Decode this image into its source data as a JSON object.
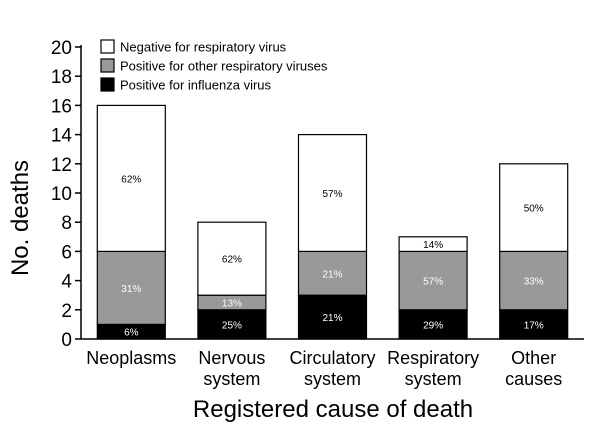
{
  "chart_data": {
    "type": "bar",
    "stacked": true,
    "categories": [
      [
        "Neoplasms"
      ],
      [
        "Nervous",
        "system"
      ],
      [
        "Circulatory",
        "system"
      ],
      [
        "Respiratory",
        "system"
      ],
      [
        "Other",
        "causes"
      ]
    ],
    "series": [
      {
        "name": "Positive for influenza virus",
        "color": "#000000",
        "label_color": "#ffffff",
        "values": [
          1,
          2,
          3,
          2,
          2
        ],
        "labels": [
          "6%",
          "25%",
          "21%",
          "29%",
          "17%"
        ]
      },
      {
        "name": "Positive for other respiratory viruses",
        "color": "#999999",
        "label_color": "#ffffff",
        "values": [
          5,
          1,
          3,
          4,
          4
        ],
        "labels": [
          "31%",
          "13%",
          "21%",
          "57%",
          "33%"
        ]
      },
      {
        "name": "Negative for respiratory virus",
        "color": "#ffffff",
        "label_color": "#000000",
        "values": [
          10,
          5,
          8,
          1,
          6
        ],
        "labels": [
          "62%",
          "62%",
          "57%",
          "14%",
          "50%"
        ]
      }
    ],
    "legend_order": [
      2,
      1,
      0
    ],
    "legend_position": "top-left",
    "xlabel": "Registered cause of death",
    "ylabel": "No. deaths",
    "ylim": [
      0,
      20
    ],
    "yticks": [
      0,
      2,
      4,
      6,
      8,
      10,
      12,
      14,
      16,
      18,
      20
    ],
    "grid": false
  }
}
